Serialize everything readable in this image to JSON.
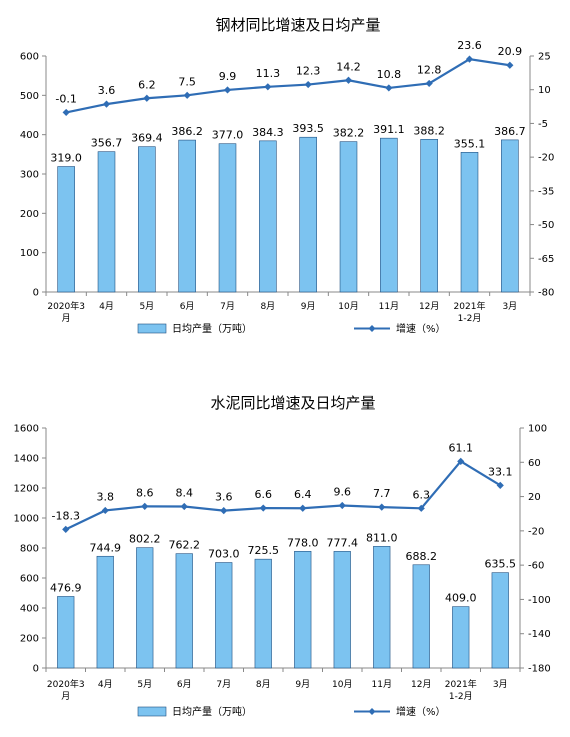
{
  "chart_data": [
    {
      "type": "bar+line",
      "title": "钢材同比增速及日均产量",
      "categories": [
        [
          "2020年3",
          "月"
        ],
        [
          "4月"
        ],
        [
          "5月"
        ],
        [
          "6月"
        ],
        [
          "7月"
        ],
        [
          "8月"
        ],
        [
          "9月"
        ],
        [
          "10月"
        ],
        [
          "11月"
        ],
        [
          "12月"
        ],
        [
          "2021年",
          "1-2月"
        ],
        [
          "3月"
        ]
      ],
      "bar_series": {
        "name": "日均产量（万吨）",
        "values": [
          319.0,
          356.7,
          369.4,
          386.2,
          377.0,
          384.3,
          393.5,
          382.2,
          391.1,
          388.2,
          355.1,
          386.7
        ],
        "color": "#7cc3f0"
      },
      "line_series": {
        "name": "增速（%）",
        "values": [
          -0.1,
          3.6,
          6.2,
          7.5,
          9.9,
          11.3,
          12.3,
          14.2,
          10.8,
          12.8,
          23.6,
          20.9
        ],
        "color": "#2f6db5"
      },
      "y_left": {
        "min": 0,
        "max": 600,
        "step": 100
      },
      "y_right": {
        "min": -80,
        "max": 25,
        "ticks": [
          25,
          10,
          -5,
          -20,
          -35,
          -50,
          -65,
          -80
        ]
      }
    },
    {
      "type": "bar+line",
      "title": "水泥同比增速及日均产量",
      "categories": [
        [
          "2020年3",
          "月"
        ],
        [
          "4月"
        ],
        [
          "5月"
        ],
        [
          "6月"
        ],
        [
          "7月"
        ],
        [
          "8月"
        ],
        [
          "9月"
        ],
        [
          "10月"
        ],
        [
          "11月"
        ],
        [
          "12月"
        ],
        [
          "2021年",
          "1-2月"
        ],
        [
          "3月"
        ]
      ],
      "bar_series": {
        "name": "日均产量（万吨）",
        "values": [
          476.9,
          744.9,
          802.2,
          762.2,
          703.0,
          725.5,
          778.0,
          777.4,
          811.0,
          688.2,
          409.0,
          635.5
        ],
        "color": "#7cc3f0"
      },
      "line_series": {
        "name": "增速（%）",
        "values": [
          -18.3,
          3.8,
          8.6,
          8.4,
          3.6,
          6.6,
          6.4,
          9.6,
          7.7,
          6.3,
          61.1,
          33.1
        ],
        "color": "#2f6db5"
      },
      "y_left": {
        "min": 0,
        "max": 1600,
        "step": 200
      },
      "y_right": {
        "min": -180,
        "max": 100,
        "ticks": [
          100,
          60,
          20,
          -20,
          -60,
          -100,
          -140,
          -180
        ]
      }
    }
  ]
}
